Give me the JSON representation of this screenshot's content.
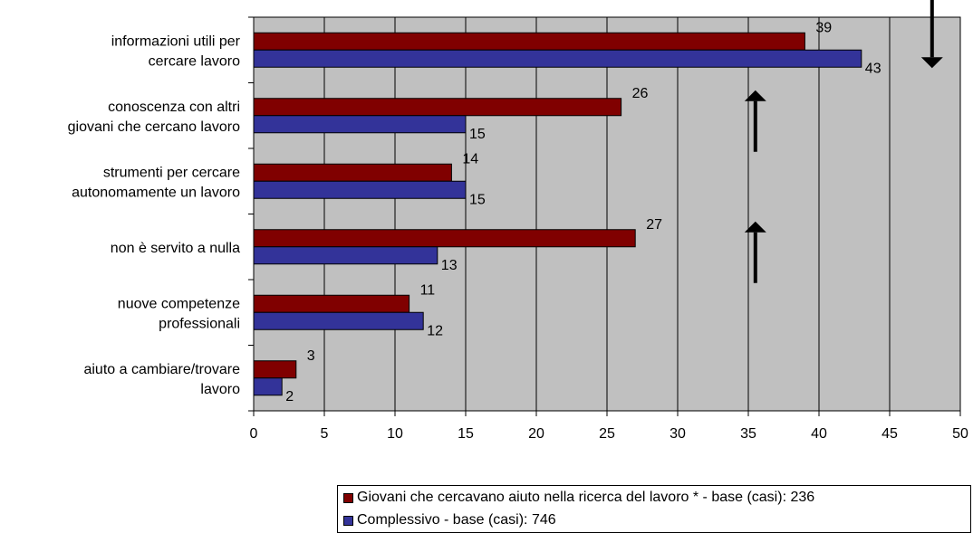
{
  "chart_data": {
    "type": "bar",
    "orientation": "horizontal",
    "categories": [
      [
        "informazioni utili per",
        "cercare lavoro"
      ],
      [
        "conoscenza con altri",
        "giovani che cercano lavoro"
      ],
      [
        "strumenti per cercare",
        "autonomamente un lavoro"
      ],
      [
        "non è servito a nulla"
      ],
      [
        "nuove competenze",
        "professionali"
      ],
      [
        "aiuto a cambiare/trovare",
        "lavoro"
      ]
    ],
    "series": [
      {
        "name": "Giovani che cercavano aiuto nella ricerca del lavoro * - base (casi): 236",
        "values": [
          39,
          26,
          14,
          27,
          11,
          3
        ],
        "color": "#800000"
      },
      {
        "name": "Complessivo - base (casi): 746",
        "values": [
          43,
          15,
          15,
          13,
          12,
          2
        ],
        "color": "#333399"
      }
    ],
    "xlim": [
      0,
      50
    ],
    "xticks": [
      0,
      5,
      10,
      15,
      20,
      25,
      30,
      35,
      40,
      45,
      50
    ],
    "grid": "vertical",
    "plot_background": "#c0c0c0",
    "legend_position": "bottom-right",
    "annotations": [
      {
        "type": "arrow",
        "direction": "down",
        "category_index": 0,
        "x": 48
      },
      {
        "type": "arrow",
        "direction": "up",
        "category_index": 1,
        "x": 35.5
      },
      {
        "type": "arrow",
        "direction": "up",
        "category_index": 3,
        "x": 35.5
      }
    ]
  }
}
